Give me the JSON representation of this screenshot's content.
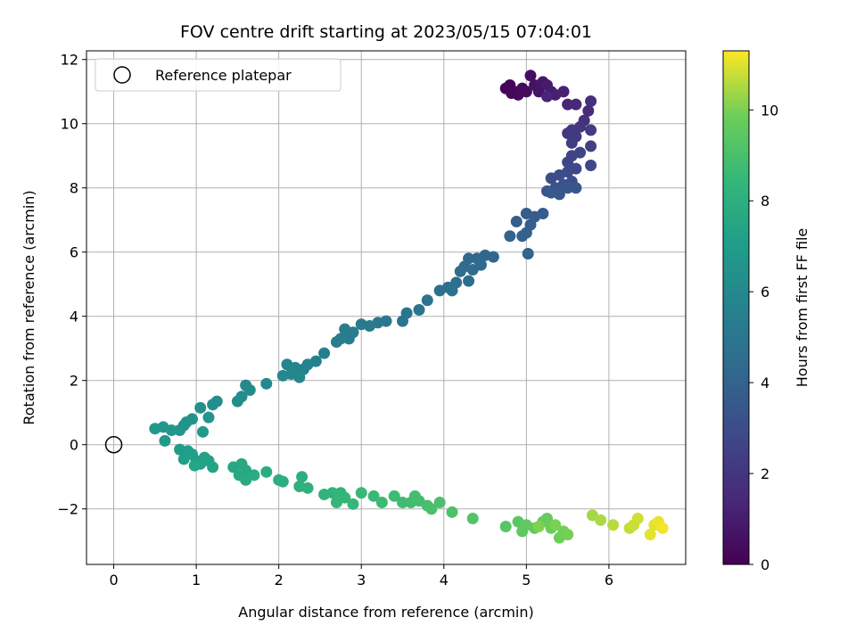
{
  "chart_data": {
    "type": "scatter",
    "title": "FOV centre drift starting at 2023/05/15 07:04:01",
    "xlabel": "Angular distance from reference (arcmin)",
    "ylabel": "Rotation from reference (arcmin)",
    "xlim": [
      -0.33,
      6.93
    ],
    "ylim": [
      -3.73,
      12.27
    ],
    "xticks": [
      0,
      1,
      2,
      3,
      4,
      5,
      6
    ],
    "yticks": [
      -2,
      0,
      2,
      4,
      6,
      8,
      10,
      12
    ],
    "grid": true,
    "colormap": "viridis",
    "colorbar": {
      "label": "Hours from first FF file",
      "range": [
        0,
        11.3
      ],
      "ticks": [
        0,
        2,
        4,
        6,
        8,
        10
      ]
    },
    "legend": {
      "placement": "top-left",
      "entries": [
        {
          "label": "Reference platepar",
          "marker": "open-circle"
        }
      ]
    },
    "reference_point": {
      "x": 0,
      "y": 0
    },
    "points": [
      {
        "x": 4.8,
        "y": 11.2,
        "t": 0.1
      },
      {
        "x": 4.85,
        "y": 11.0,
        "t": 0.2
      },
      {
        "x": 4.9,
        "y": 10.9,
        "t": 0.3
      },
      {
        "x": 4.95,
        "y": 11.1,
        "t": 0.35
      },
      {
        "x": 5.0,
        "y": 11.0,
        "t": 0.45
      },
      {
        "x": 5.05,
        "y": 11.5,
        "t": 0.5
      },
      {
        "x": 5.1,
        "y": 11.2,
        "t": 0.6
      },
      {
        "x": 5.15,
        "y": 11.0,
        "t": 0.7
      },
      {
        "x": 5.2,
        "y": 11.3,
        "t": 0.8
      },
      {
        "x": 5.25,
        "y": 11.2,
        "t": 0.9
      },
      {
        "x": 4.75,
        "y": 11.1,
        "t": 0.15
      },
      {
        "x": 4.82,
        "y": 10.95,
        "t": 0.25
      },
      {
        "x": 5.3,
        "y": 11.0,
        "t": 1.0
      },
      {
        "x": 5.35,
        "y": 10.9,
        "t": 1.1
      },
      {
        "x": 5.45,
        "y": 11.0,
        "t": 1.2
      },
      {
        "x": 5.5,
        "y": 10.6,
        "t": 1.35
      },
      {
        "x": 5.25,
        "y": 10.85,
        "t": 1.3
      },
      {
        "x": 5.6,
        "y": 10.6,
        "t": 1.4
      },
      {
        "x": 5.75,
        "y": 10.4,
        "t": 1.6
      },
      {
        "x": 5.78,
        "y": 10.7,
        "t": 1.7
      },
      {
        "x": 5.7,
        "y": 10.1,
        "t": 1.8
      },
      {
        "x": 5.65,
        "y": 9.9,
        "t": 1.95
      },
      {
        "x": 5.55,
        "y": 9.8,
        "t": 2.0
      },
      {
        "x": 5.5,
        "y": 9.7,
        "t": 2.1
      },
      {
        "x": 5.6,
        "y": 9.6,
        "t": 2.2
      },
      {
        "x": 5.78,
        "y": 9.8,
        "t": 2.25
      },
      {
        "x": 5.55,
        "y": 9.4,
        "t": 2.35
      },
      {
        "x": 5.78,
        "y": 9.3,
        "t": 2.45
      },
      {
        "x": 5.65,
        "y": 9.1,
        "t": 2.55
      },
      {
        "x": 5.55,
        "y": 9.0,
        "t": 2.6
      },
      {
        "x": 5.5,
        "y": 8.8,
        "t": 2.7
      },
      {
        "x": 5.78,
        "y": 8.7,
        "t": 2.75
      },
      {
        "x": 5.6,
        "y": 8.6,
        "t": 2.8
      },
      {
        "x": 5.5,
        "y": 8.5,
        "t": 2.9
      },
      {
        "x": 5.4,
        "y": 8.4,
        "t": 3.0
      },
      {
        "x": 5.3,
        "y": 8.3,
        "t": 3.05
      },
      {
        "x": 5.55,
        "y": 8.2,
        "t": 3.1
      },
      {
        "x": 5.45,
        "y": 8.1,
        "t": 3.2
      },
      {
        "x": 5.35,
        "y": 8.0,
        "t": 3.25
      },
      {
        "x": 5.25,
        "y": 7.9,
        "t": 3.35
      },
      {
        "x": 5.5,
        "y": 8.0,
        "t": 3.4
      },
      {
        "x": 5.6,
        "y": 8.0,
        "t": 3.45
      },
      {
        "x": 5.4,
        "y": 7.8,
        "t": 3.5
      },
      {
        "x": 5.3,
        "y": 7.85,
        "t": 3.55
      },
      {
        "x": 5.2,
        "y": 7.2,
        "t": 3.65
      },
      {
        "x": 5.1,
        "y": 7.1,
        "t": 3.7
      },
      {
        "x": 5.0,
        "y": 7.2,
        "t": 3.75
      },
      {
        "x": 4.88,
        "y": 6.95,
        "t": 3.8
      },
      {
        "x": 5.05,
        "y": 6.85,
        "t": 3.85
      },
      {
        "x": 5.0,
        "y": 6.6,
        "t": 3.9
      },
      {
        "x": 4.95,
        "y": 6.5,
        "t": 3.95
      },
      {
        "x": 4.8,
        "y": 6.5,
        "t": 4.0
      },
      {
        "x": 5.02,
        "y": 5.95,
        "t": 4.05
      },
      {
        "x": 4.6,
        "y": 5.85,
        "t": 4.15
      },
      {
        "x": 4.5,
        "y": 5.9,
        "t": 4.2
      },
      {
        "x": 4.4,
        "y": 5.8,
        "t": 4.25
      },
      {
        "x": 4.3,
        "y": 5.8,
        "t": 4.3
      },
      {
        "x": 4.45,
        "y": 5.6,
        "t": 4.35
      },
      {
        "x": 4.25,
        "y": 5.55,
        "t": 4.4
      },
      {
        "x": 4.2,
        "y": 5.4,
        "t": 4.45
      },
      {
        "x": 4.35,
        "y": 5.45,
        "t": 4.5
      },
      {
        "x": 4.3,
        "y": 5.1,
        "t": 4.55
      },
      {
        "x": 4.15,
        "y": 5.05,
        "t": 4.6
      },
      {
        "x": 4.05,
        "y": 4.9,
        "t": 4.65
      },
      {
        "x": 4.1,
        "y": 4.8,
        "t": 4.7
      },
      {
        "x": 3.95,
        "y": 4.8,
        "t": 4.75
      },
      {
        "x": 3.8,
        "y": 4.5,
        "t": 4.85
      },
      {
        "x": 3.7,
        "y": 4.2,
        "t": 4.9
      },
      {
        "x": 3.55,
        "y": 4.1,
        "t": 4.95
      },
      {
        "x": 3.5,
        "y": 3.85,
        "t": 5.0
      },
      {
        "x": 3.3,
        "y": 3.85,
        "t": 5.05
      },
      {
        "x": 3.2,
        "y": 3.8,
        "t": 5.1
      },
      {
        "x": 3.1,
        "y": 3.7,
        "t": 5.15
      },
      {
        "x": 3.0,
        "y": 3.75,
        "t": 5.2
      },
      {
        "x": 2.9,
        "y": 3.5,
        "t": 5.25
      },
      {
        "x": 2.8,
        "y": 3.6,
        "t": 5.3
      },
      {
        "x": 2.85,
        "y": 3.3,
        "t": 5.35
      },
      {
        "x": 2.75,
        "y": 3.3,
        "t": 5.4
      },
      {
        "x": 2.7,
        "y": 3.2,
        "t": 5.45
      },
      {
        "x": 2.55,
        "y": 2.85,
        "t": 5.5
      },
      {
        "x": 2.45,
        "y": 2.6,
        "t": 5.6
      },
      {
        "x": 2.35,
        "y": 2.5,
        "t": 5.65
      },
      {
        "x": 2.3,
        "y": 2.35,
        "t": 5.7
      },
      {
        "x": 2.2,
        "y": 2.4,
        "t": 5.75
      },
      {
        "x": 2.1,
        "y": 2.5,
        "t": 5.8
      },
      {
        "x": 2.25,
        "y": 2.1,
        "t": 5.85
      },
      {
        "x": 2.15,
        "y": 2.2,
        "t": 5.9
      },
      {
        "x": 2.05,
        "y": 2.15,
        "t": 5.95
      },
      {
        "x": 1.85,
        "y": 1.9,
        "t": 6.0
      },
      {
        "x": 1.6,
        "y": 1.85,
        "t": 6.05
      },
      {
        "x": 1.65,
        "y": 1.7,
        "t": 6.1
      },
      {
        "x": 1.55,
        "y": 1.5,
        "t": 6.15
      },
      {
        "x": 1.5,
        "y": 1.35,
        "t": 6.2
      },
      {
        "x": 1.25,
        "y": 1.35,
        "t": 6.25
      },
      {
        "x": 1.2,
        "y": 1.25,
        "t": 6.3
      },
      {
        "x": 1.05,
        "y": 1.15,
        "t": 6.35
      },
      {
        "x": 0.95,
        "y": 0.8,
        "t": 6.45
      },
      {
        "x": 0.88,
        "y": 0.7,
        "t": 6.5
      },
      {
        "x": 1.15,
        "y": 0.85,
        "t": 6.55
      },
      {
        "x": 0.85,
        "y": 0.6,
        "t": 6.6
      },
      {
        "x": 0.8,
        "y": 0.45,
        "t": 6.65
      },
      {
        "x": 0.7,
        "y": 0.45,
        "t": 6.7
      },
      {
        "x": 0.6,
        "y": 0.55,
        "t": 6.75
      },
      {
        "x": 0.5,
        "y": 0.5,
        "t": 6.8
      },
      {
        "x": 0.62,
        "y": 0.12,
        "t": 6.85
      },
      {
        "x": 1.08,
        "y": 0.4,
        "t": 6.9
      },
      {
        "x": 0.8,
        "y": -0.15,
        "t": 7.0
      },
      {
        "x": 0.9,
        "y": -0.2,
        "t": 7.05
      },
      {
        "x": 0.95,
        "y": -0.3,
        "t": 7.1
      },
      {
        "x": 1.0,
        "y": -0.5,
        "t": 7.15
      },
      {
        "x": 0.85,
        "y": -0.45,
        "t": 7.2
      },
      {
        "x": 1.05,
        "y": -0.6,
        "t": 7.25
      },
      {
        "x": 1.1,
        "y": -0.4,
        "t": 7.3
      },
      {
        "x": 1.15,
        "y": -0.5,
        "t": 7.35
      },
      {
        "x": 1.2,
        "y": -0.7,
        "t": 7.4
      },
      {
        "x": 0.98,
        "y": -0.65,
        "t": 7.45
      },
      {
        "x": 1.45,
        "y": -0.7,
        "t": 7.55
      },
      {
        "x": 1.55,
        "y": -0.6,
        "t": 7.6
      },
      {
        "x": 1.6,
        "y": -0.8,
        "t": 7.65
      },
      {
        "x": 1.52,
        "y": -0.95,
        "t": 7.7
      },
      {
        "x": 1.6,
        "y": -1.1,
        "t": 7.75
      },
      {
        "x": 1.7,
        "y": -0.95,
        "t": 7.8
      },
      {
        "x": 1.85,
        "y": -0.85,
        "t": 7.85
      },
      {
        "x": 2.0,
        "y": -1.1,
        "t": 7.9
      },
      {
        "x": 2.05,
        "y": -1.15,
        "t": 7.95
      },
      {
        "x": 2.28,
        "y": -1.0,
        "t": 8.0
      },
      {
        "x": 2.25,
        "y": -1.3,
        "t": 8.05
      },
      {
        "x": 2.35,
        "y": -1.35,
        "t": 8.1
      },
      {
        "x": 2.55,
        "y": -1.55,
        "t": 8.2
      },
      {
        "x": 2.65,
        "y": -1.5,
        "t": 8.25
      },
      {
        "x": 2.75,
        "y": -1.5,
        "t": 8.3
      },
      {
        "x": 2.8,
        "y": -1.65,
        "t": 8.35
      },
      {
        "x": 2.7,
        "y": -1.8,
        "t": 8.4
      },
      {
        "x": 2.9,
        "y": -1.85,
        "t": 8.45
      },
      {
        "x": 3.0,
        "y": -1.5,
        "t": 8.55
      },
      {
        "x": 3.15,
        "y": -1.6,
        "t": 8.6
      },
      {
        "x": 3.25,
        "y": -1.8,
        "t": 8.65
      },
      {
        "x": 3.4,
        "y": -1.6,
        "t": 8.7
      },
      {
        "x": 3.5,
        "y": -1.8,
        "t": 8.75
      },
      {
        "x": 3.6,
        "y": -1.8,
        "t": 8.8
      },
      {
        "x": 3.7,
        "y": -1.75,
        "t": 8.85
      },
      {
        "x": 3.65,
        "y": -1.6,
        "t": 8.9
      },
      {
        "x": 3.8,
        "y": -1.9,
        "t": 8.95
      },
      {
        "x": 3.85,
        "y": -2.0,
        "t": 9.0
      },
      {
        "x": 3.95,
        "y": -1.8,
        "t": 9.05
      },
      {
        "x": 4.1,
        "y": -2.1,
        "t": 9.1
      },
      {
        "x": 4.35,
        "y": -2.3,
        "t": 9.2
      },
      {
        "x": 4.75,
        "y": -2.55,
        "t": 9.35
      },
      {
        "x": 4.9,
        "y": -2.4,
        "t": 9.45
      },
      {
        "x": 4.95,
        "y": -2.7,
        "t": 9.5
      },
      {
        "x": 5.0,
        "y": -2.5,
        "t": 9.55
      },
      {
        "x": 5.1,
        "y": -2.6,
        "t": 9.6
      },
      {
        "x": 5.2,
        "y": -2.4,
        "t": 9.65
      },
      {
        "x": 5.25,
        "y": -2.3,
        "t": 9.7
      },
      {
        "x": 5.3,
        "y": -2.6,
        "t": 9.75
      },
      {
        "x": 5.4,
        "y": -2.9,
        "t": 9.85
      },
      {
        "x": 5.45,
        "y": -2.7,
        "t": 9.9
      },
      {
        "x": 5.5,
        "y": -2.8,
        "t": 9.95
      },
      {
        "x": 5.35,
        "y": -2.5,
        "t": 10.0
      },
      {
        "x": 5.15,
        "y": -2.55,
        "t": 10.05
      },
      {
        "x": 5.8,
        "y": -2.2,
        "t": 10.4
      },
      {
        "x": 5.9,
        "y": -2.35,
        "t": 10.5
      },
      {
        "x": 6.05,
        "y": -2.5,
        "t": 10.6
      },
      {
        "x": 6.25,
        "y": -2.6,
        "t": 10.75
      },
      {
        "x": 6.3,
        "y": -2.5,
        "t": 10.8
      },
      {
        "x": 6.35,
        "y": -2.3,
        "t": 10.85
      },
      {
        "x": 6.55,
        "y": -2.5,
        "t": 11.0
      },
      {
        "x": 6.5,
        "y": -2.8,
        "t": 11.05
      },
      {
        "x": 6.6,
        "y": -2.4,
        "t": 11.1
      },
      {
        "x": 6.65,
        "y": -2.6,
        "t": 11.2
      }
    ]
  }
}
